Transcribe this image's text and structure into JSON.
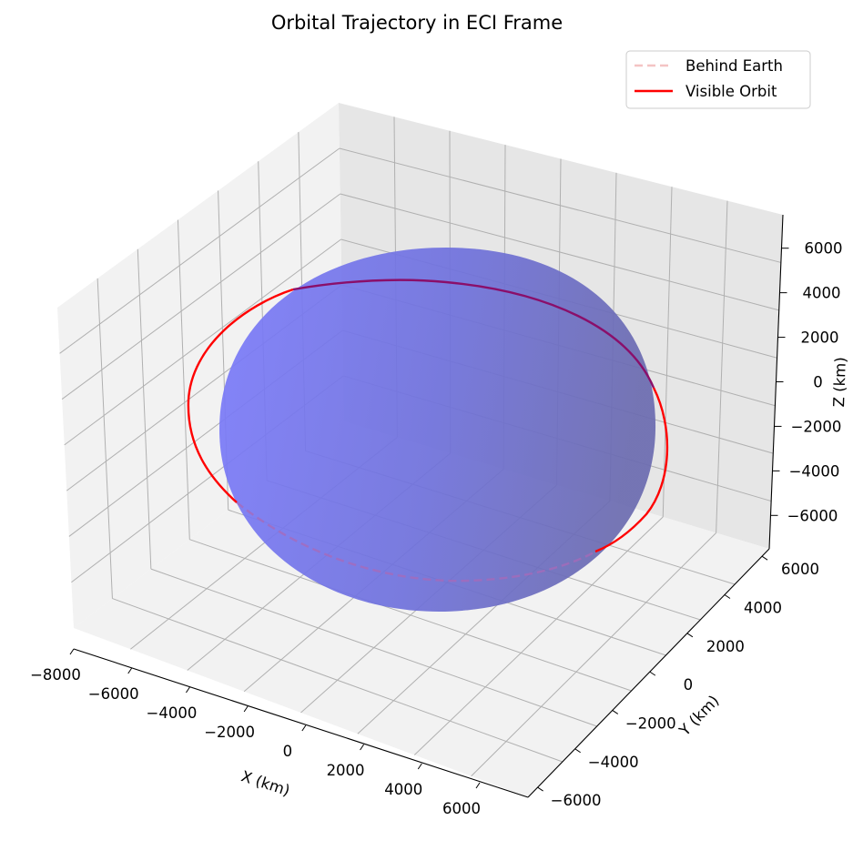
{
  "chart_data": {
    "type": "line",
    "projection": "3d",
    "title": "Orbital Trajectory in ECI Frame",
    "xlabel": "X (km)",
    "ylabel": "Y (km)",
    "zlabel": "Z (km)",
    "xticks": [
      "−8000",
      "−6000",
      "−4000",
      "−2000",
      "0",
      "2000",
      "4000",
      "6000"
    ],
    "yticks": [
      "−6000",
      "−4000",
      "−2000",
      "0",
      "2000",
      "4000",
      "6000"
    ],
    "zticks": [
      "−6000",
      "−4000",
      "−2000",
      "0",
      "2000",
      "4000",
      "6000"
    ],
    "xlim": [
      -8000,
      7000
    ],
    "ylim": [
      -7000,
      7000
    ],
    "zlim": [
      -7000,
      7000
    ],
    "grid": true,
    "legend_position": "top-right",
    "earth": {
      "shape": "sphere",
      "color": "#7070f0"
    },
    "series": [
      {
        "name": "Behind Earth",
        "color": "#f4a6a6",
        "style": "dashed"
      },
      {
        "name": "Visible Orbit",
        "color": "#ff0000",
        "style": "solid"
      }
    ]
  }
}
